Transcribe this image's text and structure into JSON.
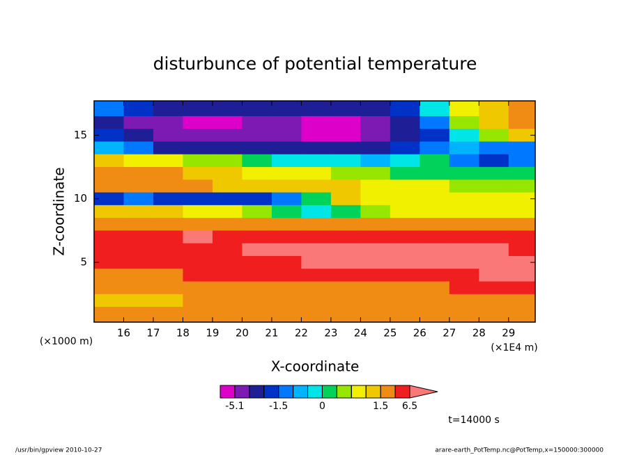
{
  "chart_data": {
    "type": "contour",
    "title": "disturbunce of potential temperature",
    "x_label": "X-coordinate",
    "y_label": "Z-coordinate",
    "x_unit": "(×1E4 m)",
    "y_unit": "(×1000 m)",
    "x": [
      15.5,
      16.5,
      17.5,
      18.5,
      19.5,
      20.5,
      21.5,
      22.5,
      23.5,
      24.5,
      25.5,
      26.5,
      27.5,
      28.5,
      29.5
    ],
    "y": [
      17,
      16,
      15,
      14,
      13,
      12,
      11,
      10,
      9,
      8,
      7,
      6,
      5,
      4,
      3,
      2,
      1
    ],
    "z": [
      [
        -1.2,
        -1.7,
        -2.5,
        -2.5,
        -2.5,
        -2.5,
        -2.5,
        -2.5,
        -2.5,
        -2.5,
        -1.7,
        -0.3,
        0.8,
        1.2,
        2
      ],
      [
        -2.5,
        -4,
        -4,
        -5.5,
        -5.5,
        -4,
        -4,
        -5.5,
        -5.5,
        -4,
        -2.5,
        -1.2,
        0.4,
        1.2,
        2
      ],
      [
        -1.7,
        -2.5,
        -4,
        -4,
        -4,
        -4,
        -4,
        -5.5,
        -5.5,
        -4,
        -2.5,
        -1.7,
        -0.3,
        0.4,
        1.2
      ],
      [
        -0.7,
        -1.2,
        -2.5,
        -2.5,
        -2.5,
        -2.5,
        -2.5,
        -2.5,
        -2.5,
        -2.5,
        -1.7,
        -1.2,
        -0.7,
        -1.2,
        -1.2
      ],
      [
        1.2,
        0.8,
        0.8,
        0.4,
        0.4,
        0.1,
        -0.3,
        -0.3,
        -0.3,
        -0.7,
        -0.3,
        0.1,
        -1.2,
        -1.7,
        -1.2
      ],
      [
        2,
        2,
        2,
        1.2,
        1.2,
        0.8,
        0.8,
        0.8,
        0.4,
        0.4,
        0.1,
        0.1,
        0.1,
        0.1,
        0.1
      ],
      [
        2,
        2,
        2,
        2,
        1.2,
        1.2,
        1.2,
        1.2,
        1.2,
        0.8,
        0.8,
        0.8,
        0.4,
        0.4,
        0.4
      ],
      [
        -1.7,
        -1.2,
        -1.7,
        -1.7,
        -1.7,
        -1.7,
        -1.2,
        0.1,
        1.2,
        0.8,
        0.8,
        0.8,
        0.8,
        0.8,
        0.8
      ],
      [
        1.2,
        1.2,
        1.2,
        0.8,
        0.8,
        0.4,
        0.1,
        -0.3,
        0.1,
        0.4,
        0.8,
        0.8,
        0.8,
        0.8,
        0.8
      ],
      [
        2,
        2,
        2,
        2,
        2,
        2,
        2,
        2,
        2,
        2,
        2,
        2,
        2,
        2,
        2
      ],
      [
        4,
        4,
        4,
        7,
        4,
        4,
        4,
        4,
        4,
        4,
        4,
        4,
        4,
        4,
        4
      ],
      [
        4,
        4,
        4,
        4,
        4,
        7,
        7,
        7,
        7,
        7,
        7,
        7,
        7,
        7,
        4
      ],
      [
        4,
        4,
        4,
        4,
        4,
        4,
        4,
        7,
        7,
        7,
        7,
        7,
        7,
        7,
        7
      ],
      [
        2,
        2,
        2,
        4,
        4,
        4,
        4,
        4,
        4,
        4,
        4,
        4,
        4,
        7,
        7
      ],
      [
        2,
        2,
        2,
        2,
        2,
        2,
        2,
        2,
        2,
        2,
        2,
        2,
        4,
        4,
        4
      ],
      [
        1.2,
        1.2,
        1.2,
        2,
        2,
        2,
        2,
        2,
        2,
        2,
        2,
        2,
        2,
        2,
        2
      ],
      [
        2,
        2,
        2,
        2,
        2,
        2,
        2,
        2,
        2,
        2,
        2,
        2,
        2,
        2,
        2
      ]
    ],
    "levels": [
      -5.1,
      -3,
      -2,
      -1.5,
      -1,
      -0.5,
      0,
      0.3,
      0.6,
      1,
      1.5,
      3,
      6.5
    ],
    "colors": [
      "#dc00c8",
      "#7d1ab4",
      "#1e1e96",
      "#0032c8",
      "#0078ff",
      "#00b4ff",
      "#00e6e6",
      "#00d25a",
      "#96e600",
      "#f0f000",
      "#f0c800",
      "#f08c14",
      "#f01e1e",
      "#fa7878"
    ],
    "colorbar_ticks": [
      -5.1,
      -1.5,
      0,
      1.5,
      6.5
    ],
    "xlim": [
      15.0,
      29.9
    ],
    "ylim": [
      0.3,
      17.7
    ],
    "xticks": [
      16,
      17,
      18,
      19,
      20,
      21,
      22,
      23,
      24,
      25,
      26,
      27,
      28,
      29
    ],
    "yticks": [
      5,
      10,
      15
    ],
    "annotation": "t=14000 s",
    "footer_left": "/usr/bin/gpview   2010-10-27",
    "footer_right": "arare-earth_PotTemp.nc@PotTemp,x=150000:300000"
  }
}
